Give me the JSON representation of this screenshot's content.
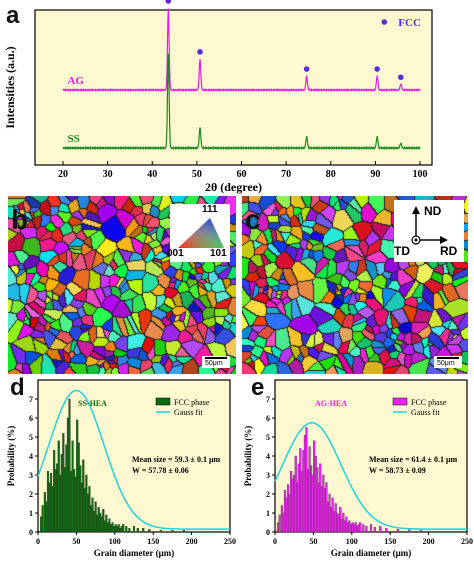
{
  "colors": {
    "panel_bg": "#fdf8d0",
    "ag": "#e020e0",
    "ss": "#1a8a1a",
    "fcc_marker": "#5b2bd6",
    "gauss": "#22d0e0",
    "ss_bar": "#0f6b0f",
    "ag_bar": "#ee22ee"
  },
  "panels": {
    "a": {
      "letter": "a"
    },
    "b": {
      "letter": "b",
      "ipf": {
        "top": "111",
        "left": "001",
        "right": "101"
      },
      "scale": "50μm"
    },
    "c": {
      "letter": "c",
      "axes": {
        "nd": "ND",
        "td": "TD",
        "rd": "RD"
      },
      "scale": "50μm"
    },
    "d": {
      "letter": "d"
    },
    "e": {
      "letter": "e"
    }
  },
  "chart_data": [
    {
      "id": "xrd",
      "type": "line",
      "xlabel": "2θ (degree)",
      "ylabel": "Intensities (a.u.)",
      "xlim": [
        20,
        100
      ],
      "xticks": [
        20,
        30,
        40,
        50,
        60,
        70,
        80,
        90,
        100
      ],
      "legend": {
        "label": "FCC",
        "placement": "top-right"
      },
      "peaks": [
        {
          "x": 43.6,
          "ag": 1.0,
          "ss": 1.0
        },
        {
          "x": 50.7,
          "ag": 0.38,
          "ss": 0.22
        },
        {
          "x": 74.6,
          "ag": 0.17,
          "ss": 0.12
        },
        {
          "x": 90.4,
          "ag": 0.17,
          "ss": 0.12
        },
        {
          "x": 95.7,
          "ag": 0.07,
          "ss": 0.05
        }
      ],
      "series": [
        {
          "name": "AG",
          "baseline": 0.3
        },
        {
          "name": "SS",
          "baseline": 0.0
        }
      ]
    },
    {
      "id": "ss_hist",
      "type": "bar",
      "xlabel": "Grain diameter (μm)",
      "ylabel": "Probability (%)",
      "xlim": [
        0,
        250
      ],
      "ylim": [
        0,
        8
      ],
      "xticks": [
        0,
        50,
        100,
        150,
        200,
        250
      ],
      "yticks": [
        0,
        1,
        2,
        3,
        4,
        5,
        6,
        7
      ],
      "label": "SS-HEA",
      "legend": [
        "FCC phase",
        "Gauss fit"
      ],
      "annotation": [
        "Mean size = 59.3 ± 0.1 μm",
        "W = 57.78 ± 0.06"
      ],
      "gauss": {
        "center": 50,
        "amp": 7.3,
        "sigma": 36,
        "offset": 0.15
      },
      "bar_width": 2.4,
      "x": [
        4,
        6,
        9,
        11,
        13,
        15,
        17,
        19,
        21,
        23,
        25,
        27,
        29,
        31,
        33,
        35,
        37,
        39,
        41,
        43,
        45,
        47,
        49,
        51,
        53,
        55,
        57,
        59,
        61,
        63,
        65,
        67,
        69,
        71,
        73,
        75,
        77,
        79,
        81,
        83,
        85,
        87,
        89,
        91,
        93,
        95,
        97,
        99,
        101,
        103,
        105,
        107,
        109,
        111,
        115,
        119,
        125,
        130,
        137,
        145,
        160,
        175,
        190
      ],
      "values": [
        0.8,
        1.4,
        2.1,
        1.6,
        3.2,
        2.6,
        3.1,
        2.4,
        4.3,
        3.3,
        3.6,
        4.8,
        3.0,
        4.1,
        5.2,
        3.4,
        4.6,
        6.0,
        7.0,
        3.2,
        4.8,
        3.3,
        2.9,
        5.9,
        4.7,
        3.5,
        2.6,
        3.8,
        2.3,
        3.0,
        2.0,
        2.4,
        1.4,
        1.8,
        1.1,
        1.6,
        0.9,
        1.3,
        1.0,
        0.8,
        1.2,
        0.6,
        0.9,
        0.5,
        0.7,
        0.4,
        0.5,
        0.3,
        0.4,
        0.3,
        0.4,
        0.2,
        0.3,
        0.4,
        0.3,
        0.2,
        0.3,
        0.2,
        0.2,
        0.15,
        0.1,
        0.1,
        0.1
      ]
    },
    {
      "id": "ag_hist",
      "type": "bar",
      "xlabel": "Grain diameter (μm)",
      "ylabel": "Probability (%)",
      "xlim": [
        0,
        250
      ],
      "ylim": [
        0,
        8
      ],
      "xticks": [
        0,
        50,
        100,
        150,
        200,
        250
      ],
      "yticks": [
        0,
        1,
        2,
        3,
        4,
        5,
        6,
        7
      ],
      "label": "AG-HEA",
      "legend": [
        "FCC phase",
        "Gauss fit"
      ],
      "annotation": [
        "Mean size = 61.4 ± 0.1 μm",
        "W = 58.73 ± 0.09"
      ],
      "gauss": {
        "center": 48,
        "amp": 5.6,
        "sigma": 38,
        "offset": 0.15
      },
      "bar_width": 2.4,
      "x": [
        4,
        6,
        9,
        11,
        13,
        15,
        17,
        19,
        21,
        23,
        25,
        27,
        29,
        31,
        33,
        35,
        37,
        39,
        41,
        43,
        45,
        47,
        49,
        51,
        53,
        55,
        57,
        59,
        61,
        63,
        65,
        67,
        69,
        71,
        73,
        75,
        77,
        79,
        81,
        83,
        85,
        87,
        89,
        91,
        93,
        95,
        97,
        99,
        101,
        103,
        105,
        107,
        109,
        111,
        115,
        119,
        125,
        130,
        137,
        145,
        160,
        175,
        190
      ],
      "values": [
        0.5,
        0.9,
        1.4,
        1.0,
        2.2,
        1.8,
        2.5,
        2.0,
        3.2,
        2.8,
        3.0,
        4.0,
        2.6,
        3.6,
        4.4,
        3.2,
        4.3,
        5.1,
        5.5,
        3.3,
        4.5,
        3.5,
        3.0,
        4.8,
        4.0,
        3.4,
        2.6,
        3.6,
        2.4,
        3.0,
        2.3,
        2.6,
        1.6,
        2.0,
        1.3,
        1.8,
        1.1,
        1.5,
        1.0,
        0.9,
        1.3,
        0.7,
        1.0,
        0.6,
        0.8,
        0.5,
        0.6,
        0.4,
        0.5,
        0.4,
        0.5,
        0.3,
        0.4,
        0.5,
        0.4,
        0.3,
        0.4,
        0.25,
        0.3,
        0.2,
        0.15,
        0.15,
        0.1
      ]
    }
  ]
}
